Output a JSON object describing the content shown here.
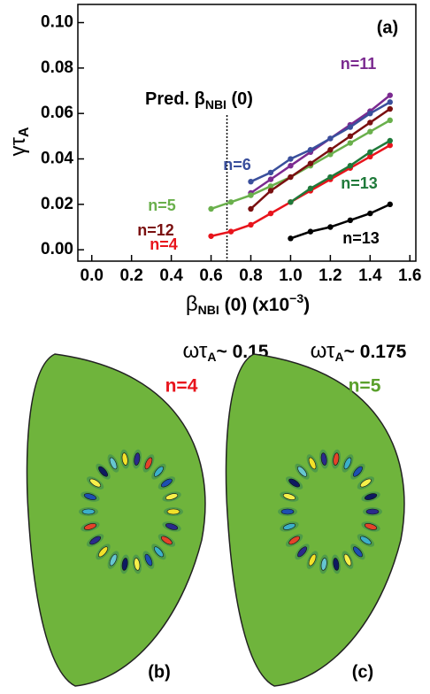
{
  "chart_data": {
    "type": "line",
    "xlim": [
      -0.07,
      1.63
    ],
    "ylim": [
      -0.005,
      0.108
    ],
    "xticks": [
      {
        "value": 0,
        "label": "0.0"
      },
      0.2,
      0.4,
      0.6,
      0.8,
      {
        "value": 1,
        "label": "1.0"
      },
      1.2,
      1.4,
      1.6
    ],
    "yticks": [
      {
        "value": 0,
        "label": "0.00"
      },
      0.02,
      0.04,
      0.06,
      0.08,
      {
        "value": 0.1,
        "label": "0.10"
      }
    ],
    "y_label": {
      "main": "γτ",
      "sub": "A"
    },
    "x_label": {
      "main": "β",
      "sub": "NBI",
      "rest": " (0) (x10",
      "sup": "−3",
      "end": ")"
    },
    "panel_label": "(a)",
    "reference_line": {
      "x": 0.68,
      "text": "Pred. β",
      "sub": "NBI",
      "rest": " (0)"
    },
    "series": [
      {
        "name": "n=11",
        "color": "#7b2a90",
        "x": [
          0.8,
          0.9,
          1.0,
          1.1,
          1.2,
          1.3,
          1.4,
          1.5
        ],
        "values": [
          0.025,
          0.031,
          0.037,
          0.043,
          0.049,
          0.055,
          0.061,
          0.068
        ]
      },
      {
        "name": "n=6",
        "color": "#3a4f9c",
        "x": [
          0.8,
          0.9,
          1.0,
          1.1,
          1.2,
          1.3,
          1.4,
          1.5
        ],
        "values": [
          0.03,
          0.034,
          0.04,
          0.044,
          0.049,
          0.054,
          0.06,
          0.065
        ]
      },
      {
        "name": "n=5",
        "color": "#6ab04c",
        "x": [
          0.6,
          0.7,
          0.8,
          0.9,
          1.0,
          1.1,
          1.2,
          1.3,
          1.4,
          1.5
        ],
        "values": [
          0.018,
          0.021,
          0.024,
          0.028,
          0.032,
          0.037,
          0.042,
          0.047,
          0.052,
          0.057
        ]
      },
      {
        "name": "n=12",
        "color": "#7a1010",
        "x": [
          0.8,
          0.9,
          1.0,
          1.1,
          1.2,
          1.3,
          1.4,
          1.5
        ],
        "values": [
          0.018,
          0.026,
          0.032,
          0.038,
          0.044,
          0.05,
          0.056,
          0.062
        ]
      },
      {
        "name": "n=4",
        "color": "#e8141c",
        "x": [
          0.6,
          0.7,
          0.8,
          0.9,
          1.0,
          1.1,
          1.2,
          1.3,
          1.4,
          1.5
        ],
        "values": [
          0.006,
          0.008,
          0.011,
          0.016,
          0.021,
          0.026,
          0.031,
          0.036,
          0.041,
          0.046
        ]
      },
      {
        "name": "n=13",
        "color": "#1f7a3a",
        "x": [
          1.0,
          1.1,
          1.2,
          1.3,
          1.4,
          1.5
        ],
        "values": [
          0.021,
          0.027,
          0.032,
          0.037,
          0.043,
          0.048
        ]
      },
      {
        "name": "n=13",
        "color": "#000000",
        "x": [
          1.0,
          1.1,
          1.2,
          1.3,
          1.4,
          1.5
        ],
        "values": [
          0.005,
          0.008,
          0.01,
          0.013,
          0.016,
          0.02
        ]
      }
    ]
  },
  "panels": [
    {
      "label": "(b)",
      "freq": {
        "symbol": "ωτ",
        "sub": "A",
        "value": "~ 0.15"
      },
      "mode": "n=4",
      "mode_color": "#e8141c"
    },
    {
      "label": "(c)",
      "freq": {
        "symbol": "ωτ",
        "sub": "A",
        "value": "~ 0.175"
      },
      "mode": "n=5",
      "mode_color": "#5aa02c"
    }
  ]
}
